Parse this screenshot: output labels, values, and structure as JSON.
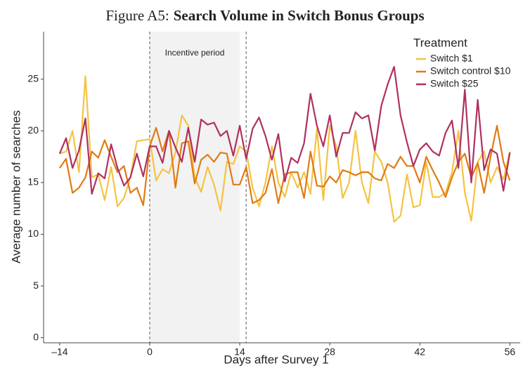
{
  "chart_data": {
    "type": "line",
    "figure_label": "Figure A5:",
    "title": "Search Volume in Switch Bonus Groups",
    "xlabel": "Days after Survey 1",
    "ylabel": "Average number of searches",
    "legend_title": "Treatment",
    "legend_position": "top-right",
    "annotation": "Incentive period",
    "shade": [
      0,
      14
    ],
    "vlines": [
      0,
      15
    ],
    "xlim": [
      -16.5,
      57.6
    ],
    "ylim": [
      -0.5,
      29.6
    ],
    "xticks": [
      {
        "value": -14,
        "label": "–14"
      },
      0,
      14,
      28,
      42,
      56
    ],
    "yticks": [
      0,
      5,
      10,
      15,
      20,
      25
    ],
    "x": [
      -14,
      -13,
      -12,
      -11,
      -10,
      -9,
      -8,
      -7,
      -6,
      -5,
      -4,
      -3,
      -2,
      -1,
      0,
      1,
      2,
      3,
      4,
      5,
      6,
      7,
      8,
      9,
      10,
      11,
      12,
      13,
      14,
      15,
      16,
      17,
      18,
      19,
      20,
      21,
      22,
      23,
      24,
      25,
      26,
      27,
      28,
      29,
      30,
      31,
      32,
      33,
      34,
      35,
      36,
      37,
      38,
      39,
      40,
      41,
      42,
      43,
      44,
      45,
      46,
      47,
      48,
      49,
      50,
      51,
      52,
      53,
      54,
      55,
      56
    ],
    "series": [
      {
        "name": "Switch $1",
        "color": "#f5c342",
        "values": [
          17.8,
          18.0,
          20.0,
          16.0,
          25.3,
          15.5,
          15.8,
          13.3,
          16.5,
          12.7,
          13.5,
          15.5,
          19.0,
          19.1,
          19.2,
          15.2,
          16.3,
          15.9,
          17.9,
          21.5,
          20.5,
          15.5,
          14.1,
          16.5,
          14.8,
          12.3,
          17.0,
          16.8,
          18.5,
          18.0,
          14.5,
          12.7,
          15.0,
          18.5,
          15.0,
          13.6,
          16.0,
          14.5,
          16.0,
          13.9,
          20.2,
          13.3,
          20.5,
          18.5,
          13.5,
          15.0,
          20.0,
          15.0,
          13.0,
          18.0,
          17.0,
          15.0,
          11.2,
          11.8,
          15.8,
          12.6,
          12.8,
          17.0,
          13.6,
          13.6,
          14.0,
          16.0,
          20.0,
          14.0,
          11.3,
          17.0,
          18.0,
          15.0,
          16.5,
          15.3,
          18.0
        ]
      },
      {
        "name": "Switch control $10",
        "color": "#e07b14",
        "values": [
          16.4,
          17.3,
          14.0,
          14.5,
          15.5,
          18.0,
          17.4,
          19.1,
          17.5,
          16.0,
          16.6,
          14.0,
          14.5,
          12.8,
          18.5,
          20.3,
          18.0,
          20.0,
          14.5,
          18.8,
          19.0,
          14.9,
          17.2,
          17.7,
          17.0,
          17.9,
          17.8,
          14.8,
          14.8,
          16.5,
          13.0,
          13.3,
          14.0,
          16.3,
          13.0,
          15.8,
          16.0,
          16.0,
          13.5,
          18.0,
          14.7,
          14.6,
          15.6,
          15.0,
          16.2,
          16.0,
          15.7,
          16.0,
          16.0,
          15.4,
          15.2,
          16.8,
          16.4,
          17.5,
          16.6,
          16.6,
          15.0,
          17.5,
          16.2,
          15.0,
          13.6,
          15.5,
          17.0,
          17.8,
          15.5,
          16.9,
          14.0,
          17.5,
          20.5,
          17.0,
          15.2
        ]
      },
      {
        "name": "Switch $25",
        "color": "#b03060",
        "values": [
          17.8,
          19.3,
          16.4,
          18.1,
          21.2,
          13.9,
          15.9,
          15.4,
          18.7,
          16.4,
          14.7,
          15.5,
          17.8,
          15.6,
          18.5,
          18.5,
          16.9,
          20.0,
          18.4,
          17.0,
          20.3,
          17.0,
          21.1,
          20.6,
          20.8,
          19.5,
          20.0,
          17.6,
          20.5,
          17.3,
          20.2,
          21.3,
          19.5,
          17.2,
          19.7,
          15.1,
          17.4,
          16.9,
          18.8,
          23.6,
          20.5,
          18.5,
          21.5,
          17.5,
          19.8,
          19.8,
          21.8,
          21.2,
          21.5,
          18.1,
          22.4,
          24.5,
          26.2,
          21.5,
          18.9,
          16.6,
          18.2,
          18.8,
          18.0,
          17.6,
          19.8,
          21.0,
          16.4,
          24.0,
          15.0,
          23.0,
          16.2,
          18.2,
          17.8,
          14.2,
          17.9
        ]
      }
    ]
  }
}
